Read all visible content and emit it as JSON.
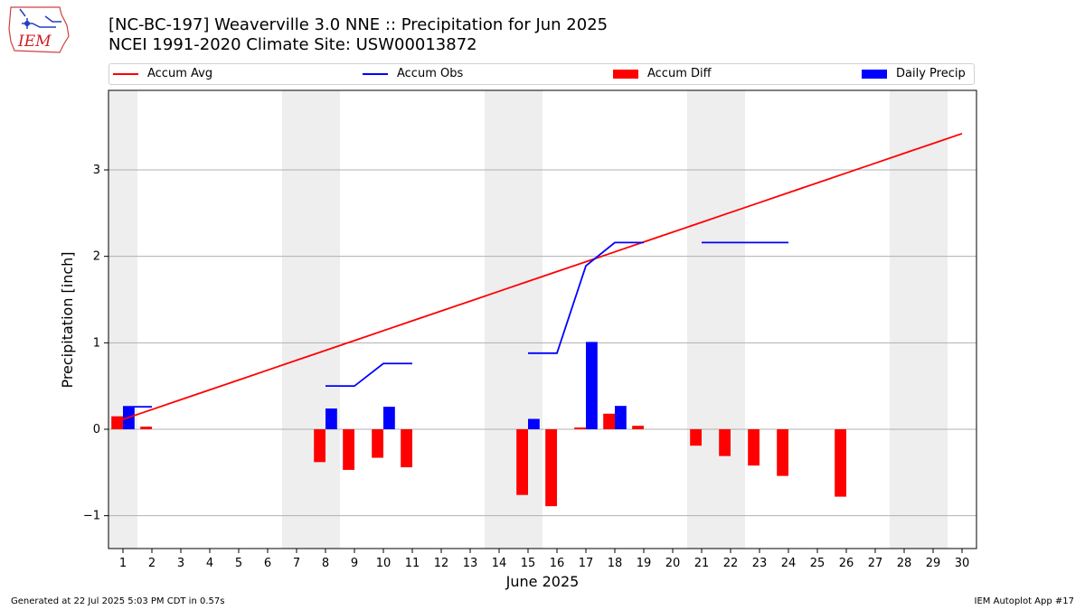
{
  "header": {
    "title_line1": "[NC-BC-197] Weaverville 3.0 NNE :: Precipitation for Jun 2025",
    "title_line2": "NCEI 1991-2020 Climate Site: USW00013872",
    "logo_text": "IEM"
  },
  "footer": {
    "generated": "Generated at 22 Jul 2025 5:03 PM CDT in 0.57s",
    "app": "IEM Autoplot App #17"
  },
  "colors": {
    "accum_avg": "#ff0000",
    "accum_obs": "#0000ff",
    "accum_diff": "#ff0000",
    "daily_precip": "#0000ff",
    "weekend_shade": "#eeeeee",
    "grid": "#b0b0b0"
  },
  "chart_data": {
    "type": "bar",
    "xlabel": "June 2025",
    "ylabel": "Precipitation [inch]",
    "xlim": [
      0.5,
      30.5
    ],
    "ylim": [
      -1.38,
      3.92
    ],
    "yticks": [
      -1,
      0,
      1,
      2,
      3
    ],
    "grid": "horizontal",
    "legend_position": "top",
    "x": [
      1,
      2,
      3,
      4,
      5,
      6,
      7,
      8,
      9,
      10,
      11,
      12,
      13,
      14,
      15,
      16,
      17,
      18,
      19,
      20,
      21,
      22,
      23,
      24,
      25,
      26,
      27,
      28,
      29,
      30
    ],
    "weekend_days": [
      1,
      7,
      8,
      14,
      15,
      21,
      22,
      28,
      29
    ],
    "series": [
      {
        "name": "Accum Avg",
        "type": "line",
        "values": [
          0.114,
          0.228,
          0.342,
          0.456,
          0.57,
          0.684,
          0.798,
          0.912,
          1.026,
          1.14,
          1.254,
          1.368,
          1.482,
          1.596,
          1.71,
          1.824,
          1.938,
          2.052,
          2.166,
          2.28,
          2.394,
          2.508,
          2.622,
          2.736,
          2.85,
          2.964,
          3.078,
          3.192,
          3.306,
          3.42
        ]
      },
      {
        "name": "Accum Obs",
        "type": "line",
        "values": [
          0.26,
          0.26,
          null,
          null,
          null,
          null,
          null,
          0.5,
          0.5,
          0.76,
          0.76,
          null,
          null,
          null,
          0.88,
          0.88,
          1.89,
          2.16,
          2.16,
          null,
          2.16,
          2.16,
          2.16,
          2.16,
          null,
          null,
          null,
          null,
          null,
          null
        ]
      },
      {
        "name": "Accum Diff",
        "type": "bar",
        "values": [
          0.15,
          0.03,
          null,
          null,
          null,
          null,
          null,
          -0.38,
          -0.47,
          -0.33,
          -0.44,
          null,
          null,
          null,
          -0.76,
          -0.89,
          0.02,
          0.18,
          0.04,
          null,
          -0.19,
          -0.31,
          -0.42,
          -0.54,
          null,
          -0.78,
          null,
          null,
          null,
          null
        ]
      },
      {
        "name": "Daily Precip",
        "type": "bar",
        "values": [
          0.26,
          0,
          null,
          null,
          null,
          null,
          null,
          0.24,
          0,
          0.26,
          0,
          null,
          null,
          null,
          0.12,
          0,
          1.01,
          0.27,
          0,
          null,
          0,
          0,
          0,
          0,
          null,
          null,
          null,
          null,
          null,
          null
        ]
      }
    ]
  }
}
